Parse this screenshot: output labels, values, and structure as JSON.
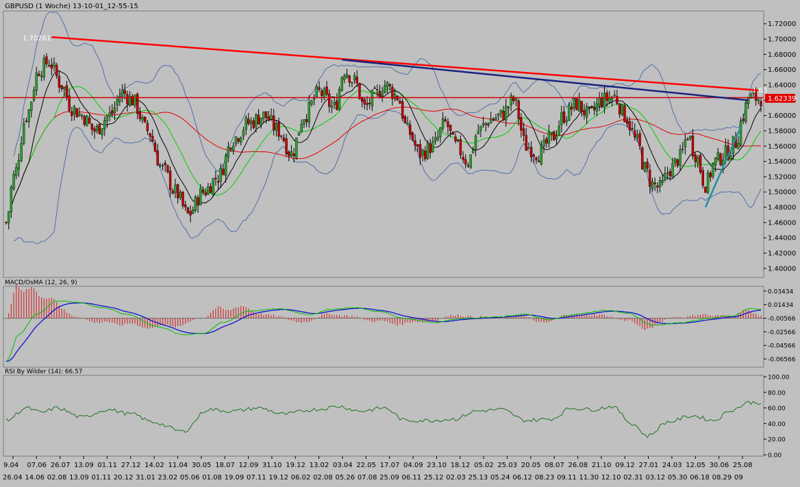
{
  "main_panel": {
    "title": "GBPUSD (1 Woche) 13-10-01_12-55-15",
    "yticks": [
      "1.72000",
      "1.70000",
      "1.68000",
      "1.66000",
      "1.64000",
      "1.62000",
      "1.60000",
      "1.58000",
      "1.56000",
      "1.54000",
      "1.52000",
      "1.50000",
      "1.48000",
      "1.46000",
      "1.44000",
      "1.42000",
      "1.40000"
    ],
    "current_price": "1.62339",
    "peak_label": "1.70261",
    "trendline_label": "1.63",
    "colors": {
      "up": "#2ca02c",
      "down": "#c00000",
      "bollinger": "#4f6fa8",
      "sma_black": "#000000",
      "sma_green": "#00cc00",
      "sma_red": "#e00000",
      "trend_red": "#ff0000",
      "trend_blue": "#1a237e",
      "trend_teal": "#1e8fa0",
      "resistance": "#d00000"
    }
  },
  "macd_panel": {
    "title": "MACD/OsMA (12, 26, 9)",
    "yticks": [
      "0.03434",
      "0.01434",
      "-0.00566",
      "-0.02566",
      "-0.04566",
      "-0.06566"
    ]
  },
  "rsi_panel": {
    "title": "RSI By Wilder (14): 66.57",
    "yticks": [
      "100.00",
      "80.00",
      "60.00",
      "40.00",
      "20.00",
      "0.00"
    ]
  },
  "xaxis": {
    "row1": [
      "9.04",
      "07.06",
      "26.07",
      "13.09",
      "01.11",
      "27.12",
      "14.02",
      "11.04",
      "30.05",
      "18.07",
      "12.09",
      "31.10",
      "19.12",
      "13.02",
      "03.04",
      "22.05",
      "17.07",
      "04.09",
      "23.10",
      "18.12",
      "05.02",
      "25.03",
      "20.05",
      "08.07",
      "26.08",
      "21.10",
      "09.12",
      "27.01",
      "24.03",
      "12.05",
      "30.06",
      "25.08"
    ],
    "row2": [
      "26.04",
      "14.06",
      "02.08",
      "13.09",
      "01.11",
      "20.12",
      "31.01",
      "23.02",
      "05.06",
      "01.08",
      "19.09",
      "07.11",
      "19.12",
      "06.02",
      "02.08",
      "05.26",
      "07.08",
      "25.09",
      "06.11",
      "25.12",
      "02.03",
      "25.13",
      "05.24",
      "06.12",
      "08.23",
      "09.11",
      "11.30",
      "12.10",
      "02.31",
      "03.12",
      "05.30",
      "06.18",
      "08.29",
      "09"
    ]
  },
  "chart_data": {
    "type": "candlestick",
    "symbol": "GBPUSD",
    "timeframe": "1 Woche",
    "price_ylim": [
      1.39,
      1.735
    ],
    "price_anchors": [
      [
        0,
        1.46
      ],
      [
        3,
        1.52
      ],
      [
        8,
        1.6
      ],
      [
        13,
        1.66
      ],
      [
        17,
        1.67
      ],
      [
        22,
        1.64
      ],
      [
        26,
        1.61
      ],
      [
        30,
        1.6
      ],
      [
        35,
        1.58
      ],
      [
        41,
        1.6
      ],
      [
        46,
        1.63
      ],
      [
        50,
        1.62
      ],
      [
        56,
        1.58
      ],
      [
        62,
        1.53
      ],
      [
        67,
        1.5
      ],
      [
        72,
        1.47
      ],
      [
        78,
        1.5
      ],
      [
        84,
        1.52
      ],
      [
        90,
        1.57
      ],
      [
        96,
        1.59
      ],
      [
        102,
        1.6
      ],
      [
        108,
        1.58
      ],
      [
        113,
        1.55
      ],
      [
        118,
        1.6
      ],
      [
        124,
        1.63
      ],
      [
        130,
        1.61
      ],
      [
        134,
        1.66
      ],
      [
        138,
        1.645
      ],
      [
        142,
        1.61
      ],
      [
        146,
        1.625
      ],
      [
        150,
        1.64
      ],
      [
        155,
        1.625
      ],
      [
        159,
        1.58
      ],
      [
        164,
        1.55
      ],
      [
        169,
        1.56
      ],
      [
        174,
        1.59
      ],
      [
        178,
        1.56
      ],
      [
        183,
        1.54
      ],
      [
        187,
        1.58
      ],
      [
        192,
        1.595
      ],
      [
        196,
        1.6
      ],
      [
        201,
        1.62
      ],
      [
        206,
        1.56
      ],
      [
        211,
        1.55
      ],
      [
        216,
        1.57
      ],
      [
        221,
        1.6
      ],
      [
        226,
        1.615
      ],
      [
        231,
        1.6
      ],
      [
        236,
        1.62
      ],
      [
        241,
        1.625
      ],
      [
        245,
        1.6
      ],
      [
        250,
        1.565
      ],
      [
        253,
        1.53
      ],
      [
        256,
        1.51
      ],
      [
        259,
        1.505
      ],
      [
        263,
        1.53
      ],
      [
        267,
        1.545
      ],
      [
        270,
        1.575
      ],
      [
        273,
        1.55
      ],
      [
        277,
        1.51
      ],
      [
        281,
        1.54
      ],
      [
        285,
        1.55
      ],
      [
        289,
        1.565
      ],
      [
        292,
        1.6
      ],
      [
        294,
        1.623
      ]
    ],
    "lines": {
      "resistance": 1.62339,
      "red_trend": [
        [
          18,
          1.70261
        ],
        [
          298,
          1.633
        ]
      ],
      "blue_trend": [
        [
          133,
          1.673
        ],
        [
          294,
          1.62
        ]
      ],
      "teal_trend": [
        [
          277,
          1.48
        ],
        [
          291,
          1.585
        ]
      ]
    },
    "macd": {
      "ylim": [
        -0.0757,
        0.0393
      ],
      "anchors": [
        [
          0,
          -0.07
        ],
        [
          5,
          -0.03
        ],
        [
          12,
          0.0
        ],
        [
          20,
          0.02
        ],
        [
          28,
          0.018
        ],
        [
          38,
          0.01
        ],
        [
          48,
          0.0
        ],
        [
          60,
          -0.018
        ],
        [
          70,
          -0.03
        ],
        [
          78,
          -0.028
        ],
        [
          86,
          -0.012
        ],
        [
          96,
          0.005
        ],
        [
          108,
          0.008
        ],
        [
          120,
          0.0
        ],
        [
          130,
          0.008
        ],
        [
          138,
          0.01
        ],
        [
          148,
          0.004
        ],
        [
          158,
          -0.006
        ],
        [
          170,
          -0.012
        ],
        [
          180,
          -0.006
        ],
        [
          195,
          -0.004
        ],
        [
          205,
          0.0
        ],
        [
          215,
          -0.008
        ],
        [
          225,
          0.0
        ],
        [
          238,
          0.006
        ],
        [
          246,
          0.002
        ],
        [
          256,
          -0.016
        ],
        [
          268,
          -0.012
        ],
        [
          278,
          -0.006
        ],
        [
          288,
          -0.002
        ],
        [
          294,
          0.008
        ]
      ]
    },
    "rsi": {
      "ylim": [
        0,
        100
      ],
      "anchors": [
        [
          0,
          44
        ],
        [
          8,
          60
        ],
        [
          14,
          54
        ],
        [
          20,
          60
        ],
        [
          30,
          48
        ],
        [
          40,
          58
        ],
        [
          50,
          52
        ],
        [
          58,
          42
        ],
        [
          70,
          30
        ],
        [
          80,
          58
        ],
        [
          90,
          56
        ],
        [
          100,
          60
        ],
        [
          110,
          52
        ],
        [
          122,
          58
        ],
        [
          132,
          62
        ],
        [
          140,
          56
        ],
        [
          150,
          60
        ],
        [
          158,
          44
        ],
        [
          168,
          44
        ],
        [
          178,
          46
        ],
        [
          186,
          56
        ],
        [
          196,
          58
        ],
        [
          206,
          44
        ],
        [
          216,
          46
        ],
        [
          224,
          60
        ],
        [
          232,
          58
        ],
        [
          240,
          62
        ],
        [
          248,
          40
        ],
        [
          254,
          24
        ],
        [
          262,
          42
        ],
        [
          272,
          50
        ],
        [
          280,
          44
        ],
        [
          288,
          58
        ],
        [
          294,
          67
        ]
      ]
    }
  }
}
